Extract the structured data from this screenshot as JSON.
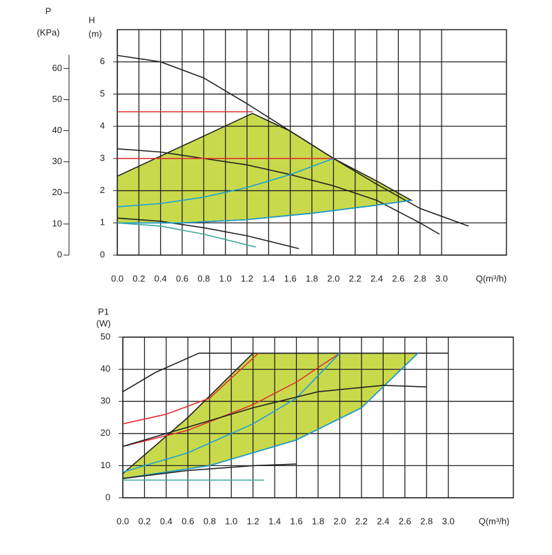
{
  "chart_data": [
    {
      "type": "line",
      "ylabel": "H",
      "yunit": "(m)",
      "y2label": "P",
      "y2unit": "(KPa)",
      "xlabel": "Q(m³/h)",
      "xlim": [
        0,
        3.6
      ],
      "ylim": [
        0,
        7
      ],
      "y2lim": [
        0,
        72.5
      ],
      "xticks": [
        {
          "value": 0,
          "label": "0.0"
        },
        0.2,
        0.4,
        0.6,
        0.8,
        {
          "value": 1,
          "label": "1.0"
        },
        1.2,
        1.4,
        1.6,
        1.8,
        {
          "value": 2,
          "label": "2.0"
        },
        2.2,
        2.4,
        2.6,
        2.8,
        {
          "value": 3,
          "label": "3.0"
        }
      ],
      "yticks": [
        0,
        1,
        2,
        3,
        4,
        5,
        6
      ],
      "y2ticks": [
        0,
        10,
        20,
        30,
        40,
        50,
        60
      ],
      "grid": true,
      "series": [
        {
          "color": "#222222",
          "fill": "#c8da4c",
          "x": [
            0,
            1.25,
            1.6,
            2.0,
            2.4,
            2.72,
            2.4,
            1.8,
            1.2,
            0.6,
            0
          ],
          "values": [
            2.45,
            4.4,
            3.85,
            3.0,
            2.3,
            1.7,
            1.55,
            1.3,
            1.1,
            1.0,
            1.0
          ]
        },
        {
          "color": "#222222",
          "x": [
            0,
            0.4,
            0.8,
            1.2,
            1.6,
            2.0,
            2.4,
            2.8,
            3.25
          ],
          "values": [
            6.2,
            6.0,
            5.5,
            4.7,
            3.85,
            3.0,
            2.2,
            1.45,
            0.9
          ]
        },
        {
          "color": "#222222",
          "x": [
            0,
            0.4,
            0.8,
            1.2,
            1.6,
            2.0,
            2.4,
            2.8,
            2.98
          ],
          "values": [
            3.3,
            3.2,
            3.0,
            2.8,
            2.5,
            2.15,
            1.7,
            1.0,
            0.65
          ]
        },
        {
          "color": "#222222",
          "x": [
            0,
            0.4,
            0.8,
            1.2,
            1.68
          ],
          "values": [
            1.15,
            1.05,
            0.85,
            0.6,
            0.2
          ]
        },
        {
          "color": "#e03030",
          "x": [
            0,
            1.25
          ],
          "values": [
            4.45,
            4.45
          ]
        },
        {
          "color": "#e03030",
          "x": [
            0,
            2.0
          ],
          "values": [
            3.0,
            3.0
          ]
        },
        {
          "color": "#1aa0d8",
          "x": [
            0,
            0.4,
            0.8,
            1.2,
            1.6,
            2.0
          ],
          "values": [
            1.5,
            1.6,
            1.8,
            2.1,
            2.5,
            3.0
          ]
        },
        {
          "color": "#1aa0d8",
          "x": [
            0,
            0.6,
            1.2,
            1.8,
            2.4,
            2.72
          ],
          "values": [
            1.0,
            1.0,
            1.1,
            1.3,
            1.55,
            1.7
          ]
        },
        {
          "color": "#3aa89a",
          "x": [
            0,
            0.4,
            0.8,
            1.28
          ],
          "values": [
            1.0,
            0.9,
            0.65,
            0.25
          ]
        }
      ]
    },
    {
      "type": "line",
      "ylabel": "P1",
      "yunit": "(W)",
      "xlabel": "Q(m³/h)",
      "xlim": [
        0,
        3.6
      ],
      "ylim": [
        0,
        50
      ],
      "xticks": [
        {
          "value": 0,
          "label": "0.0"
        },
        0.2,
        0.4,
        0.6,
        0.8,
        {
          "value": 1,
          "label": "1.0"
        },
        1.2,
        1.4,
        1.6,
        1.8,
        {
          "value": 2,
          "label": "2.0"
        },
        2.2,
        2.4,
        2.6,
        2.8,
        {
          "value": 3,
          "label": "3.0"
        }
      ],
      "yticks": [
        0,
        10,
        20,
        30,
        40,
        50
      ],
      "grid": true,
      "series": [
        {
          "color": "#222222",
          "fill": "#c8da4c",
          "x": [
            0,
            0.6,
            1.2,
            2.72,
            2.2,
            1.6,
            0.8,
            0
          ],
          "values": [
            7.5,
            25,
            45,
            45,
            28,
            18,
            10,
            6
          ]
        },
        {
          "color": "#222222",
          "x": [
            0,
            0.3,
            0.7,
            3.0
          ],
          "values": [
            33,
            39,
            45,
            45
          ]
        },
        {
          "color": "#e03030",
          "x": [
            0,
            0.4,
            0.8,
            1.25
          ],
          "values": [
            23,
            26,
            31,
            45
          ]
        },
        {
          "color": "#e03030",
          "x": [
            0,
            0.6,
            1.2,
            1.6,
            2.0
          ],
          "values": [
            16,
            21,
            29,
            36,
            45
          ]
        },
        {
          "color": "#1aa0d8",
          "x": [
            0,
            0.6,
            1.2,
            1.6,
            2.0
          ],
          "values": [
            8,
            14,
            23,
            31,
            45
          ]
        },
        {
          "color": "#1aa0d8",
          "x": [
            0,
            0.8,
            1.6,
            2.2,
            2.72
          ],
          "values": [
            6,
            10,
            18,
            28,
            45
          ]
        },
        {
          "color": "#222222",
          "x": [
            0,
            0.6,
            1.2,
            1.8,
            2.4,
            2.8
          ],
          "values": [
            16,
            22,
            28,
            33,
            35,
            34.5
          ]
        },
        {
          "color": "#222222",
          "x": [
            0,
            0.6,
            1.2,
            1.6
          ],
          "values": [
            6,
            8.5,
            10,
            10.5
          ]
        },
        {
          "color": "#3aa89a",
          "x": [
            0,
            1.3
          ],
          "values": [
            5.5,
            5.5
          ]
        }
      ]
    }
  ]
}
